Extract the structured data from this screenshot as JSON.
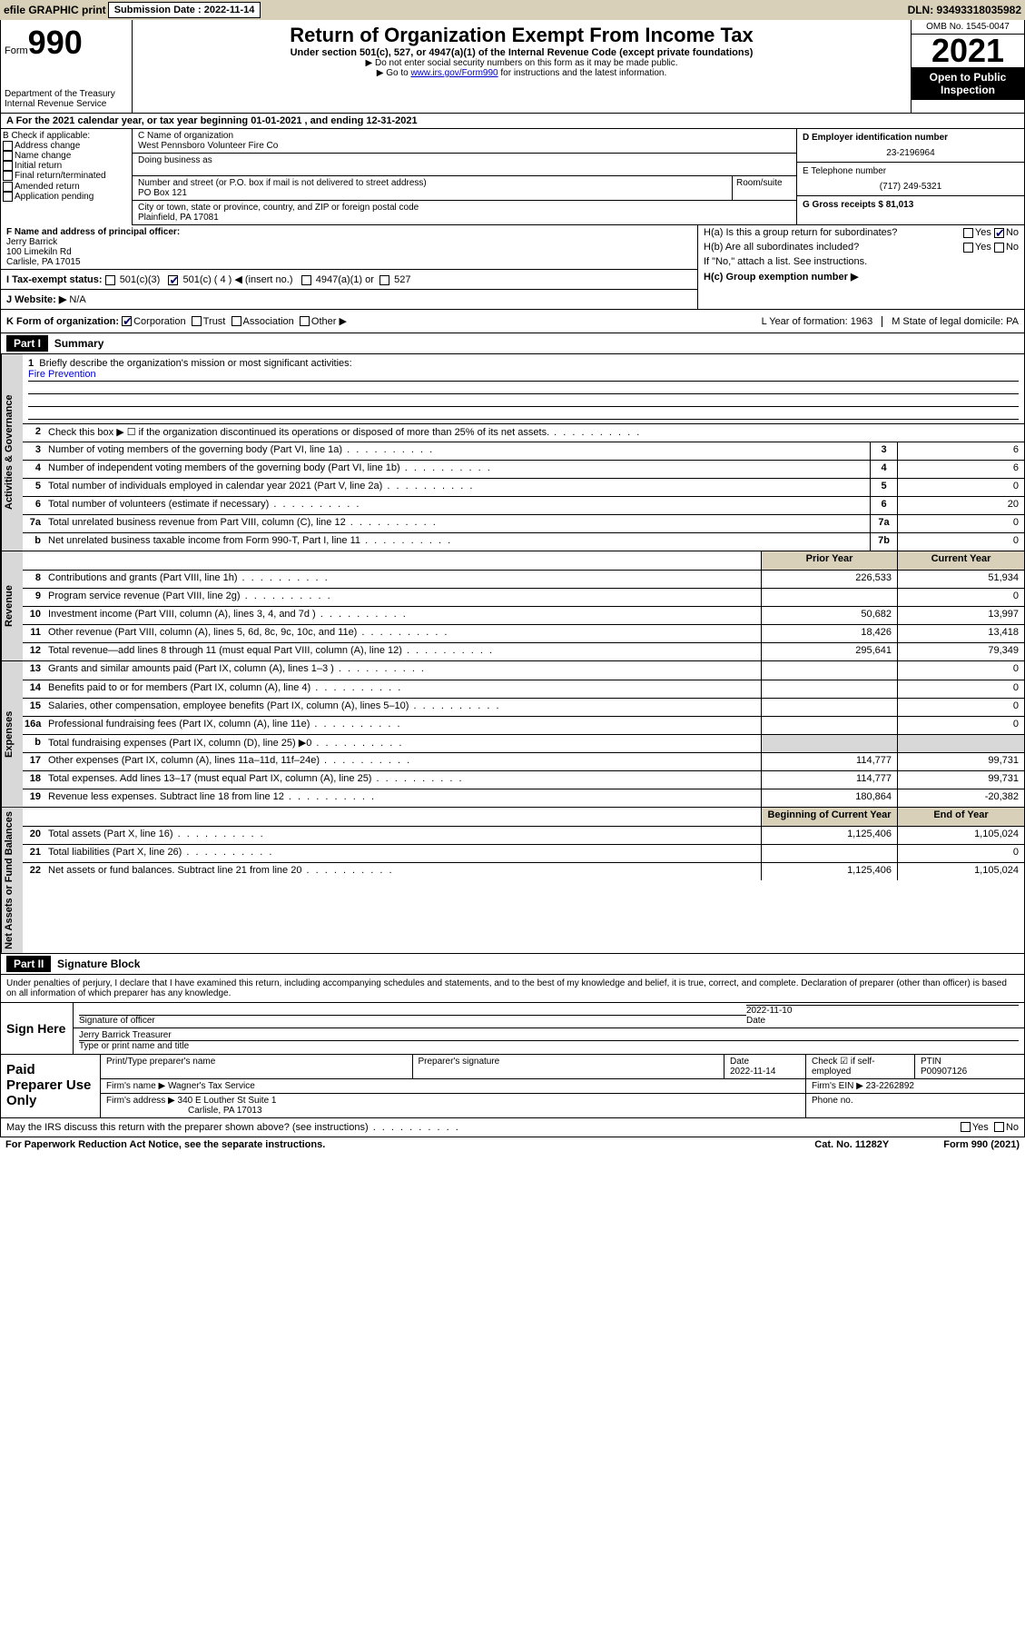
{
  "topbar": {
    "efile_label": "efile GRAPHIC print",
    "submission_label": "Submission Date : 2022-11-14",
    "dln_label": "DLN: 93493318035982"
  },
  "header": {
    "form_word": "Form",
    "form_number": "990",
    "dept": "Department of the Treasury",
    "irs": "Internal Revenue Service",
    "title": "Return of Organization Exempt From Income Tax",
    "subtitle": "Under section 501(c), 527, or 4947(a)(1) of the Internal Revenue Code (except private foundations)",
    "note1": "▶ Do not enter social security numbers on this form as it may be made public.",
    "note2_pre": "▶ Go to ",
    "note2_link": "www.irs.gov/Form990",
    "note2_post": " for instructions and the latest information.",
    "omb": "OMB No. 1545-0047",
    "year": "2021",
    "public": "Open to Public Inspection"
  },
  "row_a": "A For the 2021 calendar year, or tax year beginning 01-01-2021   , and ending 12-31-2021",
  "box_b": {
    "label": "B Check if applicable:",
    "opts": [
      "Address change",
      "Name change",
      "Initial return",
      "Final return/terminated",
      "Amended return",
      "Application pending"
    ]
  },
  "box_c": {
    "name_label": "C Name of organization",
    "name": "West Pennsboro Volunteer Fire Co",
    "dba_label": "Doing business as",
    "street_label": "Number and street (or P.O. box if mail is not delivered to street address)",
    "room_label": "Room/suite",
    "street": "PO Box 121",
    "city_label": "City or town, state or province, country, and ZIP or foreign postal code",
    "city": "Plainfield, PA  17081"
  },
  "box_d": {
    "ein_label": "D Employer identification number",
    "ein": "23-2196964",
    "phone_label": "E Telephone number",
    "phone": "(717) 249-5321",
    "gross_label": "G Gross receipts $ 81,013"
  },
  "box_f": {
    "label": "F Name and address of principal officer:",
    "name": "Jerry Barrick",
    "addr1": "100 Limekiln Rd",
    "addr2": "Carlisle, PA  17015"
  },
  "box_h": {
    "a": "H(a)  Is this a group return for subordinates?",
    "b": "H(b)  Are all subordinates included?",
    "b_note": "If \"No,\" attach a list. See instructions.",
    "c": "H(c)  Group exemption number ▶",
    "yes": "Yes",
    "no": "No"
  },
  "row_i": {
    "label": "I   Tax-exempt status:",
    "o1": "501(c)(3)",
    "o2": "501(c) ( 4 ) ◀ (insert no.)",
    "o3": "4947(a)(1) or",
    "o4": "527"
  },
  "row_j": {
    "label": "J   Website: ▶",
    "val": "N/A"
  },
  "row_k": {
    "label": "K Form of organization:",
    "opts": [
      "Corporation",
      "Trust",
      "Association",
      "Other ▶"
    ],
    "l": "L Year of formation: 1963",
    "m": "M State of legal domicile: PA"
  },
  "parts": {
    "p1": "Part I",
    "p1_title": "Summary",
    "p2": "Part II",
    "p2_title": "Signature Block"
  },
  "summary": {
    "groups": [
      {
        "tab": "Activities & Governance",
        "lines": [
          {
            "n": "1",
            "t": "Briefly describe the organization's mission or most significant activities:",
            "mission": "Fire Prevention"
          },
          {
            "n": "2",
            "t": "Check this box ▶ ☐  if the organization discontinued its operations or disposed of more than 25% of its net assets."
          },
          {
            "n": "3",
            "t": "Number of voting members of the governing body (Part VI, line 1a)",
            "rn": "3",
            "rv": "6"
          },
          {
            "n": "4",
            "t": "Number of independent voting members of the governing body (Part VI, line 1b)",
            "rn": "4",
            "rv": "6"
          },
          {
            "n": "5",
            "t": "Total number of individuals employed in calendar year 2021 (Part V, line 2a)",
            "rn": "5",
            "rv": "0"
          },
          {
            "n": "6",
            "t": "Total number of volunteers (estimate if necessary)",
            "rn": "6",
            "rv": "20"
          },
          {
            "n": "7a",
            "t": "Total unrelated business revenue from Part VIII, column (C), line 12",
            "rn": "7a",
            "rv": "0"
          },
          {
            "n": "b",
            "t": "Net unrelated business taxable income from Form 990-T, Part I, line 11",
            "rn": "7b",
            "rv": "0"
          }
        ]
      },
      {
        "tab": "Revenue",
        "header": true,
        "lines": [
          {
            "n": "8",
            "t": "Contributions and grants (Part VIII, line 1h)",
            "py": "226,533",
            "cy": "51,934"
          },
          {
            "n": "9",
            "t": "Program service revenue (Part VIII, line 2g)",
            "py": "",
            "cy": "0"
          },
          {
            "n": "10",
            "t": "Investment income (Part VIII, column (A), lines 3, 4, and 7d )",
            "py": "50,682",
            "cy": "13,997"
          },
          {
            "n": "11",
            "t": "Other revenue (Part VIII, column (A), lines 5, 6d, 8c, 9c, 10c, and 11e)",
            "py": "18,426",
            "cy": "13,418"
          },
          {
            "n": "12",
            "t": "Total revenue—add lines 8 through 11 (must equal Part VIII, column (A), line 12)",
            "py": "295,641",
            "cy": "79,349"
          }
        ]
      },
      {
        "tab": "Expenses",
        "lines": [
          {
            "n": "13",
            "t": "Grants and similar amounts paid (Part IX, column (A), lines 1–3 )",
            "py": "",
            "cy": "0"
          },
          {
            "n": "14",
            "t": "Benefits paid to or for members (Part IX, column (A), line 4)",
            "py": "",
            "cy": "0"
          },
          {
            "n": "15",
            "t": "Salaries, other compensation, employee benefits (Part IX, column (A), lines 5–10)",
            "py": "",
            "cy": "0"
          },
          {
            "n": "16a",
            "t": "Professional fundraising fees (Part IX, column (A), line 11e)",
            "py": "",
            "cy": "0"
          },
          {
            "n": "b",
            "t": "Total fundraising expenses (Part IX, column (D), line 25) ▶0",
            "shaded": true
          },
          {
            "n": "17",
            "t": "Other expenses (Part IX, column (A), lines 11a–11d, 11f–24e)",
            "py": "114,777",
            "cy": "99,731"
          },
          {
            "n": "18",
            "t": "Total expenses. Add lines 13–17 (must equal Part IX, column (A), line 25)",
            "py": "114,777",
            "cy": "99,731"
          },
          {
            "n": "19",
            "t": "Revenue less expenses. Subtract line 18 from line 12",
            "py": "180,864",
            "cy": "-20,382"
          }
        ]
      },
      {
        "tab": "Net Assets or Fund Balances",
        "header2": true,
        "lines": [
          {
            "n": "20",
            "t": "Total assets (Part X, line 16)",
            "py": "1,125,406",
            "cy": "1,105,024"
          },
          {
            "n": "21",
            "t": "Total liabilities (Part X, line 26)",
            "py": "",
            "cy": "0"
          },
          {
            "n": "22",
            "t": "Net assets or fund balances. Subtract line 21 from line 20",
            "py": "1,125,406",
            "cy": "1,105,024"
          }
        ]
      }
    ],
    "col_headers": {
      "py": "Prior Year",
      "cy": "Current Year",
      "bcy": "Beginning of Current Year",
      "eoy": "End of Year"
    }
  },
  "sig": {
    "penalty": "Under penalties of perjury, I declare that I have examined this return, including accompanying schedules and statements, and to the best of my knowledge and belief, it is true, correct, and complete. Declaration of preparer (other than officer) is based on all information of which preparer has any knowledge.",
    "sign_here": "Sign Here",
    "sig_officer": "Signature of officer",
    "date": "Date",
    "date_val": "2022-11-10",
    "name_val": "Jerry Barrick  Treasurer",
    "name_label": "Type or print name and title",
    "paid": "Paid Preparer Use Only",
    "prep_name": "Print/Type preparer's name",
    "prep_sig": "Preparer's signature",
    "prep_date": "Date",
    "prep_date_val": "2022-11-14",
    "check_self": "Check ☑ if self-employed",
    "ptin": "PTIN",
    "ptin_val": "P00907126",
    "firm_name_label": "Firm's name    ▶",
    "firm_name": "Wagner's Tax Service",
    "firm_ein_label": "Firm's EIN ▶",
    "firm_ein": "23-2262892",
    "firm_addr_label": "Firm's address ▶",
    "firm_addr1": "340 E Louther St Suite 1",
    "firm_addr2": "Carlisle, PA  17013",
    "phone_label": "Phone no."
  },
  "footer": {
    "discuss": "May the IRS discuss this return with the preparer shown above? (see instructions)",
    "yes": "Yes",
    "no": "No",
    "paperwork": "For Paperwork Reduction Act Notice, see the separate instructions.",
    "cat": "Cat. No. 11282Y",
    "form": "Form 990 (2021)"
  }
}
